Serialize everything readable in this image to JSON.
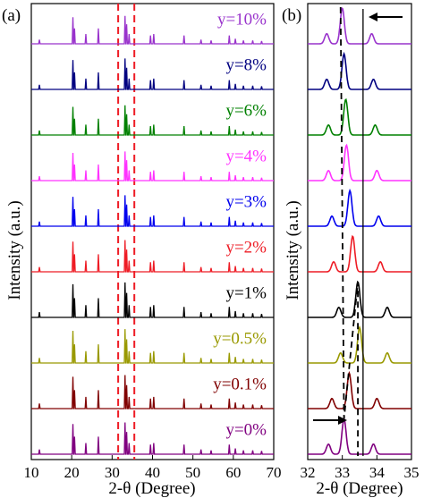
{
  "chart_data": [
    {
      "panel_label": "(a)",
      "type": "line",
      "xlabel": "2-θ (Degree)",
      "ylabel": "Intensity (a.u.)",
      "xlim": [
        10,
        70
      ],
      "x_ticks": [
        "10",
        "20",
        "30",
        "40",
        "50",
        "60",
        "70"
      ],
      "stacked": true,
      "marker_lines_x": [
        31.5,
        35.5
      ],
      "marker_line_color": "#ee1c25",
      "marker_line_style": "dashed",
      "peaks_2theta": [
        12,
        20.3,
        20.7,
        23.5,
        26.6,
        33.2,
        33.6,
        34.2,
        39.5,
        40.3,
        47.8,
        52,
        54.5,
        59,
        60.5,
        62.5,
        64.8,
        67
      ],
      "peak_heights": [
        0.15,
        0.95,
        0.55,
        0.35,
        0.55,
        1.0,
        0.7,
        0.35,
        0.3,
        0.35,
        0.3,
        0.15,
        0.12,
        0.3,
        0.18,
        0.12,
        0.12,
        0.1
      ],
      "series": [
        {
          "name": "y=10%",
          "color": "#9933cc",
          "scale": 0.38
        },
        {
          "name": "y=8%",
          "color": "#000080",
          "scale": 0.55
        },
        {
          "name": "y=6%",
          "color": "#008000",
          "scale": 0.48
        },
        {
          "name": "y=4%",
          "color": "#ff33ff",
          "scale": 0.45
        },
        {
          "name": "y=3%",
          "color": "#0000ee",
          "scale": 0.55
        },
        {
          "name": "y=2%",
          "color": "#ee1c25",
          "scale": 0.6
        },
        {
          "name": "y=1%",
          "color": "#000000",
          "scale": 0.78
        },
        {
          "name": "y=0.5%",
          "color": "#999900",
          "scale": 0.72
        },
        {
          "name": "y=0.1%",
          "color": "#800000",
          "scale": 0.7
        },
        {
          "name": "y=0%",
          "color": "#800080",
          "scale": 0.6
        }
      ]
    },
    {
      "panel_label": "(b)",
      "type": "line",
      "xlabel": "2-θ (Degree)",
      "ylabel": "Intensity (a.u.)",
      "xlim": [
        32,
        35
      ],
      "x_ticks": [
        "32",
        "33",
        "34",
        "35"
      ],
      "stacked": true,
      "vertical_line_x": 33.6,
      "dashed_trend": [
        [
          33.05,
          "y=0%"
        ],
        [
          33.45,
          "y=1%"
        ],
        [
          32.95,
          "y=10%"
        ]
      ],
      "arrows": [
        "left-pointing arrow top right",
        "right-pointing arrow bottom left"
      ],
      "series": [
        {
          "name": "y=10%",
          "color": "#9933cc",
          "center": 33.0,
          "side_peaks": [
            32.55,
            33.85
          ]
        },
        {
          "name": "y=8%",
          "color": "#000080",
          "center": 33.05,
          "side_peaks": [
            32.55,
            33.9
          ]
        },
        {
          "name": "y=6%",
          "color": "#008000",
          "center": 33.1,
          "side_peaks": [
            32.6,
            33.95
          ]
        },
        {
          "name": "y=4%",
          "color": "#ff33ff",
          "center": 33.12,
          "side_peaks": [
            32.6,
            34.0
          ]
        },
        {
          "name": "y=3%",
          "color": "#0000ee",
          "center": 33.22,
          "side_peaks": [
            32.7,
            34.05
          ]
        },
        {
          "name": "y=2%",
          "color": "#ee1c25",
          "center": 33.3,
          "side_peaks": [
            32.75,
            34.1
          ]
        },
        {
          "name": "y=1%",
          "color": "#000000",
          "center": 33.45,
          "side_peaks": [
            32.9,
            34.3
          ]
        },
        {
          "name": "y=0.5%",
          "color": "#999900",
          "center": 33.5,
          "side_peaks": [
            32.95,
            34.3
          ]
        },
        {
          "name": "y=0.1%",
          "color": "#800000",
          "center": 33.2,
          "side_peaks": [
            32.7,
            34.0
          ]
        },
        {
          "name": "y=0%",
          "color": "#800080",
          "center": 33.05,
          "side_peaks": [
            32.6,
            33.9
          ]
        }
      ]
    }
  ]
}
